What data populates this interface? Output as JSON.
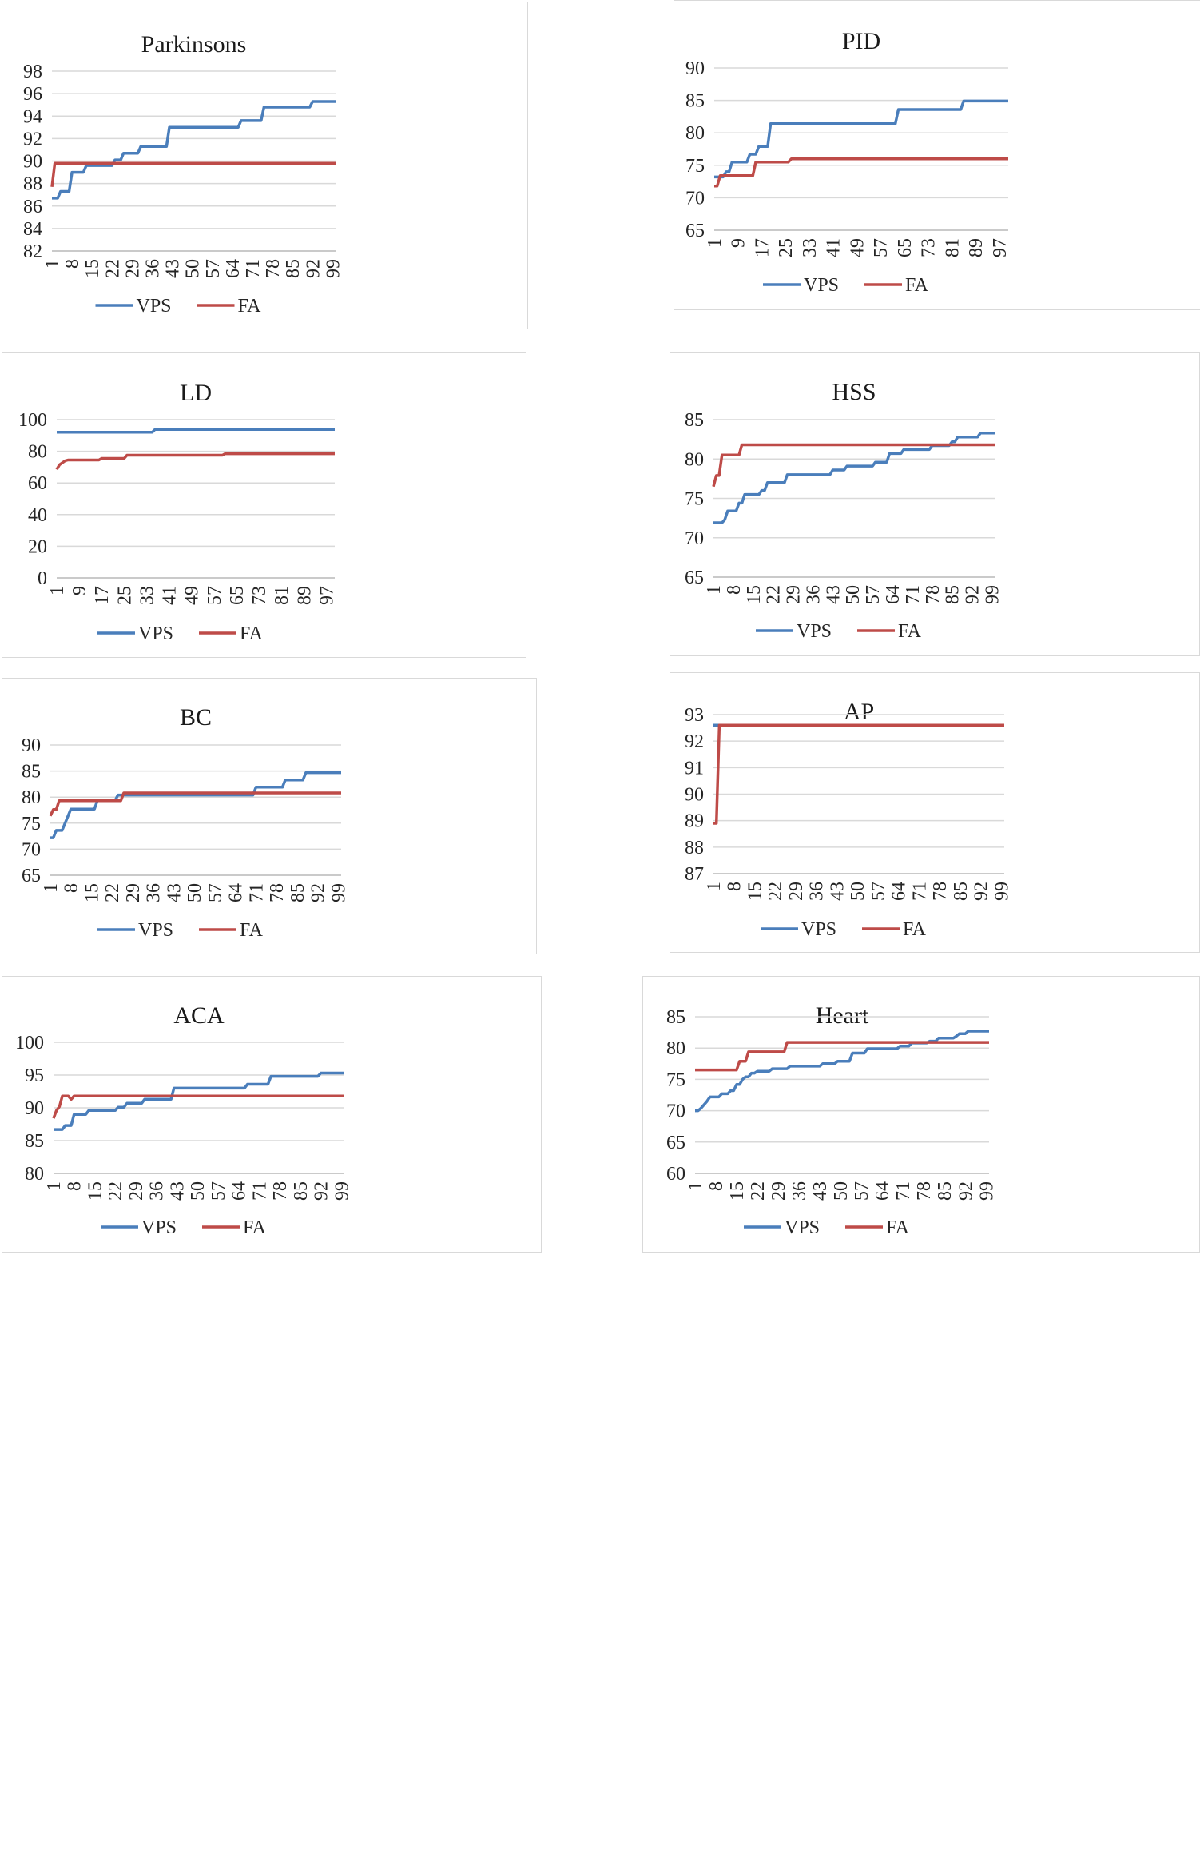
{
  "colors": {
    "VPS": "#4a7ebb",
    "FA": "#be4b48",
    "grid": "#d9d9d9",
    "axis": "#bfbfbf"
  },
  "legend": [
    "VPS",
    "FA"
  ],
  "chart_data": [
    {
      "id": "parkinsons",
      "type": "line",
      "title": "Parkinsons",
      "yticks": [
        82,
        84,
        86,
        88,
        90,
        92,
        94,
        96,
        98
      ],
      "ylim": [
        82,
        98
      ],
      "xticks": [
        1,
        8,
        15,
        22,
        29,
        36,
        43,
        50,
        57,
        64,
        71,
        78,
        85,
        92,
        99
      ],
      "xlim": [
        1,
        100
      ],
      "series": [
        {
          "name": "VPS",
          "points": [
            [
              1,
              86.7
            ],
            [
              3,
              86.7
            ],
            [
              4,
              87.3
            ],
            [
              7,
              87.3
            ],
            [
              8,
              89
            ],
            [
              12,
              89
            ],
            [
              13,
              89.6
            ],
            [
              22,
              89.6
            ],
            [
              23,
              90.1
            ],
            [
              25,
              90.1
            ],
            [
              26,
              90.7
            ],
            [
              31,
              90.7
            ],
            [
              32,
              91.3
            ],
            [
              41,
              91.3
            ],
            [
              42,
              93
            ],
            [
              66,
              93
            ],
            [
              67,
              93.6
            ],
            [
              74,
              93.6
            ],
            [
              75,
              94.8
            ],
            [
              91,
              94.8
            ],
            [
              92,
              95.3
            ],
            [
              100,
              95.3
            ]
          ]
        },
        {
          "name": "FA",
          "points": [
            [
              1,
              87.7
            ],
            [
              2,
              89.8
            ],
            [
              100,
              89.8
            ]
          ]
        }
      ]
    },
    {
      "id": "pid",
      "type": "line",
      "title": "PID",
      "yticks": [
        65,
        70,
        75,
        80,
        85,
        90
      ],
      "ylim": [
        65,
        90
      ],
      "xticks": [
        1,
        9,
        17,
        25,
        33,
        41,
        49,
        57,
        65,
        73,
        81,
        89,
        97
      ],
      "xlim": [
        1,
        100
      ],
      "series": [
        {
          "name": "VPS",
          "points": [
            [
              1,
              73.2
            ],
            [
              4,
              73.2
            ],
            [
              5,
              74
            ],
            [
              6,
              74
            ],
            [
              7,
              75.5
            ],
            [
              12,
              75.5
            ],
            [
              13,
              76.7
            ],
            [
              15,
              76.7
            ],
            [
              16,
              77.9
            ],
            [
              19,
              77.9
            ],
            [
              20,
              81.4
            ],
            [
              62,
              81.4
            ],
            [
              63,
              83.6
            ],
            [
              84,
              83.6
            ],
            [
              85,
              84.9
            ],
            [
              100,
              84.9
            ]
          ]
        },
        {
          "name": "FA",
          "points": [
            [
              1,
              71.8
            ],
            [
              2,
              71.8
            ],
            [
              3,
              73.4
            ],
            [
              14,
              73.4
            ],
            [
              15,
              75.5
            ],
            [
              26,
              75.5
            ],
            [
              27,
              76
            ],
            [
              100,
              76
            ]
          ]
        }
      ]
    },
    {
      "id": "ld",
      "type": "line",
      "title": "LD",
      "yticks": [
        0,
        20,
        40,
        60,
        80,
        100
      ],
      "ylim": [
        0,
        100
      ],
      "xticks": [
        1,
        9,
        17,
        25,
        33,
        41,
        49,
        57,
        65,
        73,
        81,
        89,
        97
      ],
      "xlim": [
        1,
        100
      ],
      "series": [
        {
          "name": "VPS",
          "points": [
            [
              1,
              92
            ],
            [
              35,
              92
            ],
            [
              36,
              93.8
            ],
            [
              100,
              93.8
            ]
          ]
        },
        {
          "name": "FA",
          "points": [
            [
              1,
              68.5
            ],
            [
              2,
              71.5
            ],
            [
              4,
              74
            ],
            [
              5,
              74.5
            ],
            [
              16,
              74.5
            ],
            [
              17,
              75.5
            ],
            [
              25,
              75.5
            ],
            [
              26,
              77.5
            ],
            [
              60,
              77.5
            ],
            [
              61,
              78.5
            ],
            [
              100,
              78.5
            ]
          ]
        }
      ]
    },
    {
      "id": "hss",
      "type": "line",
      "title": "HSS",
      "yticks": [
        65,
        70,
        75,
        80,
        85
      ],
      "ylim": [
        65,
        85
      ],
      "xticks": [
        1,
        8,
        15,
        22,
        29,
        36,
        43,
        50,
        57,
        64,
        71,
        78,
        85,
        92,
        99
      ],
      "xlim": [
        1,
        100
      ],
      "series": [
        {
          "name": "VPS",
          "points": [
            [
              1,
              71.9
            ],
            [
              4,
              71.9
            ],
            [
              5,
              72.3
            ],
            [
              6,
              73.4
            ],
            [
              9,
              73.4
            ],
            [
              10,
              74.4
            ],
            [
              11,
              74.4
            ],
            [
              12,
              75.5
            ],
            [
              17,
              75.5
            ],
            [
              18,
              76
            ],
            [
              19,
              76
            ],
            [
              20,
              77
            ],
            [
              26,
              77
            ],
            [
              27,
              78
            ],
            [
              42,
              78
            ],
            [
              43,
              78.6
            ],
            [
              47,
              78.6
            ],
            [
              48,
              79.1
            ],
            [
              57,
              79.1
            ],
            [
              58,
              79.6
            ],
            [
              62,
              79.6
            ],
            [
              63,
              80.7
            ],
            [
              67,
              80.7
            ],
            [
              68,
              81.2
            ],
            [
              77,
              81.2
            ],
            [
              78,
              81.7
            ],
            [
              84,
              81.7
            ],
            [
              85,
              82.2
            ],
            [
              86,
              82.2
            ],
            [
              87,
              82.8
            ],
            [
              94,
              82.8
            ],
            [
              95,
              83.3
            ],
            [
              100,
              83.3
            ]
          ]
        },
        {
          "name": "FA",
          "points": [
            [
              1,
              76.5
            ],
            [
              2,
              77.9
            ],
            [
              3,
              77.9
            ],
            [
              4,
              80.5
            ],
            [
              10,
              80.5
            ],
            [
              11,
              81.8
            ],
            [
              100,
              81.8
            ]
          ]
        }
      ]
    },
    {
      "id": "bc",
      "type": "line",
      "title": "BC",
      "yticks": [
        65,
        70,
        75,
        80,
        85,
        90
      ],
      "ylim": [
        65,
        90
      ],
      "xticks": [
        1,
        8,
        15,
        22,
        29,
        36,
        43,
        50,
        57,
        64,
        71,
        78,
        85,
        92,
        99
      ],
      "xlim": [
        1,
        100
      ],
      "series": [
        {
          "name": "VPS",
          "points": [
            [
              1,
              72.2
            ],
            [
              2,
              72.2
            ],
            [
              3,
              73.6
            ],
            [
              5,
              73.6
            ],
            [
              8,
              77.7
            ],
            [
              16,
              77.7
            ],
            [
              17,
              79.3
            ],
            [
              23,
              79.3
            ],
            [
              24,
              80.4
            ],
            [
              70,
              80.4
            ],
            [
              71,
              81.9
            ],
            [
              80,
              81.9
            ],
            [
              81,
              83.3
            ],
            [
              87,
              83.3
            ],
            [
              88,
              84.7
            ],
            [
              100,
              84.7
            ]
          ]
        },
        {
          "name": "FA",
          "points": [
            [
              1,
              76.4
            ],
            [
              2,
              77.6
            ],
            [
              3,
              77.6
            ],
            [
              4,
              79.3
            ],
            [
              25,
              79.3
            ],
            [
              26,
              80.8
            ],
            [
              100,
              80.8
            ]
          ]
        }
      ]
    },
    {
      "id": "ap",
      "type": "line",
      "title": "AP",
      "yticks": [
        87,
        88,
        89,
        90,
        91,
        92,
        93
      ],
      "ylim": [
        87,
        93
      ],
      "xticks": [
        1,
        8,
        15,
        22,
        29,
        36,
        43,
        50,
        57,
        64,
        71,
        78,
        85,
        92,
        99
      ],
      "xlim": [
        1,
        100
      ],
      "series": [
        {
          "name": "VPS",
          "points": [
            [
              1,
              92.6
            ],
            [
              100,
              92.6
            ]
          ]
        },
        {
          "name": "FA",
          "points": [
            [
              1,
              88.9
            ],
            [
              2,
              88.9
            ],
            [
              3,
              92.6
            ],
            [
              100,
              92.6
            ]
          ]
        }
      ]
    },
    {
      "id": "aca",
      "type": "line",
      "title": "ACA",
      "yticks": [
        80,
        85,
        90,
        95,
        100
      ],
      "ylim": [
        80,
        100
      ],
      "xticks": [
        1,
        8,
        15,
        22,
        29,
        36,
        43,
        50,
        57,
        64,
        71,
        78,
        85,
        92,
        99
      ],
      "xlim": [
        1,
        100
      ],
      "series": [
        {
          "name": "VPS",
          "points": [
            [
              1,
              86.7
            ],
            [
              4,
              86.7
            ],
            [
              5,
              87.3
            ],
            [
              7,
              87.3
            ],
            [
              8,
              89
            ],
            [
              12,
              89
            ],
            [
              13,
              89.6
            ],
            [
              22,
              89.6
            ],
            [
              23,
              90.1
            ],
            [
              25,
              90.1
            ],
            [
              26,
              90.7
            ],
            [
              31,
              90.7
            ],
            [
              32,
              91.3
            ],
            [
              41,
              91.3
            ],
            [
              42,
              93
            ],
            [
              66,
              93
            ],
            [
              67,
              93.6
            ],
            [
              74,
              93.6
            ],
            [
              75,
              94.8
            ],
            [
              91,
              94.8
            ],
            [
              92,
              95.3
            ],
            [
              100,
              95.3
            ]
          ]
        },
        {
          "name": "FA",
          "points": [
            [
              1,
              88.4
            ],
            [
              2,
              89.6
            ],
            [
              3,
              90.2
            ],
            [
              4,
              91.8
            ],
            [
              6,
              91.8
            ],
            [
              7,
              91.3
            ],
            [
              8,
              91.8
            ],
            [
              100,
              91.8
            ]
          ]
        }
      ]
    },
    {
      "id": "heart",
      "type": "line",
      "title": "Heart",
      "yticks": [
        60,
        65,
        70,
        75,
        80,
        85
      ],
      "ylim": [
        60,
        85
      ],
      "xticks": [
        1,
        8,
        15,
        22,
        29,
        36,
        43,
        50,
        57,
        64,
        71,
        78,
        85,
        92,
        99
      ],
      "xlim": [
        1,
        100
      ],
      "series": [
        {
          "name": "VPS",
          "points": [
            [
              1,
              70
            ],
            [
              2,
              70
            ],
            [
              3,
              70.4
            ],
            [
              5,
              71.5
            ],
            [
              6,
              72.2
            ],
            [
              9,
              72.2
            ],
            [
              10,
              72.7
            ],
            [
              12,
              72.7
            ],
            [
              13,
              73.2
            ],
            [
              14,
              73.2
            ],
            [
              15,
              74.2
            ],
            [
              16,
              74.2
            ],
            [
              17,
              75
            ],
            [
              18,
              75.4
            ],
            [
              19,
              75.4
            ],
            [
              20,
              76
            ],
            [
              21,
              76
            ],
            [
              22,
              76.3
            ],
            [
              26,
              76.3
            ],
            [
              27,
              76.7
            ],
            [
              32,
              76.7
            ],
            [
              33,
              77.1
            ],
            [
              43,
              77.1
            ],
            [
              44,
              77.5
            ],
            [
              48,
              77.5
            ],
            [
              49,
              77.9
            ],
            [
              53,
              77.9
            ],
            [
              54,
              79.2
            ],
            [
              58,
              79.2
            ],
            [
              59,
              79.9
            ],
            [
              69,
              79.9
            ],
            [
              70,
              80.3
            ],
            [
              73,
              80.3
            ],
            [
              74,
              80.8
            ],
            [
              79,
              80.8
            ],
            [
              80,
              81.1
            ],
            [
              82,
              81.1
            ],
            [
              83,
              81.6
            ],
            [
              88,
              81.6
            ],
            [
              89,
              81.9
            ],
            [
              90,
              82.3
            ],
            [
              92,
              82.3
            ],
            [
              93,
              82.7
            ],
            [
              100,
              82.7
            ]
          ]
        },
        {
          "name": "FA",
          "points": [
            [
              1,
              76.5
            ],
            [
              15,
              76.5
            ],
            [
              16,
              77.9
            ],
            [
              18,
              77.9
            ],
            [
              19,
              79.4
            ],
            [
              31,
              79.4
            ],
            [
              32,
              80.9
            ],
            [
              100,
              80.9
            ]
          ]
        }
      ]
    }
  ]
}
